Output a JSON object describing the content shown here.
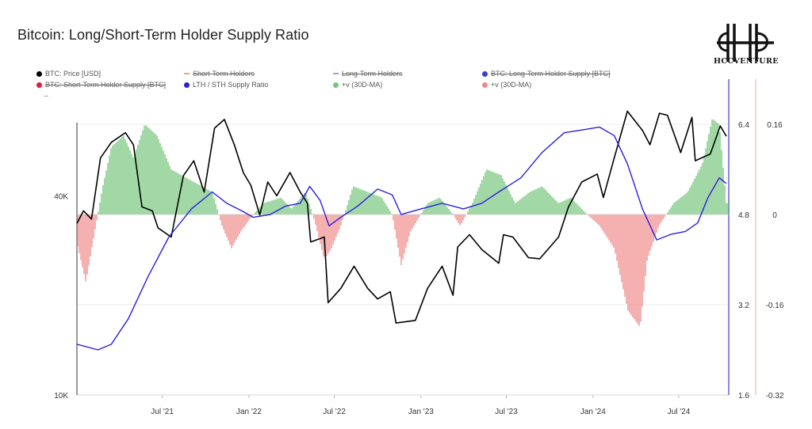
{
  "title": "Bitcoin: Long/Short-Term Holder Supply Ratio",
  "logo": {
    "name": "HCCVENTURE"
  },
  "legend_more": "--",
  "legend": [
    {
      "label": "BTC: Price [USD]",
      "color": "#000000",
      "shape": "dot",
      "enabled": true
    },
    {
      "label": "Short-Term Holders",
      "color": "#f4a582",
      "shape": "dash",
      "enabled": false
    },
    {
      "label": "Long-Term Holders",
      "color": "#9e9ee8",
      "shape": "dash",
      "enabled": false
    },
    {
      "label": "BTC: Long-Term Holder Supply [BTC]",
      "color": "#3b3bd6",
      "shape": "dot",
      "enabled": false
    },
    {
      "label": "BTC: Short-Term Holder Supply [BTC]",
      "color": "#e8173f",
      "shape": "dot",
      "enabled": false
    },
    {
      "label": "LTH / STH Supply Ratio",
      "color": "#2a1fe0",
      "shape": "dot",
      "enabled": true
    },
    {
      "label": "+v (30D-MA)",
      "color": "#76c67c",
      "shape": "dot",
      "enabled": true
    },
    {
      "label": "+v (30D-MA)",
      "color": "#f08a8a",
      "shape": "dot",
      "enabled": true
    }
  ],
  "chart_data": {
    "type": "line",
    "x_ticks": [
      "Jul '21",
      "Jan '22",
      "Jul '22",
      "Jan '23",
      "Jul '23",
      "Jan '24",
      "Jul '24"
    ],
    "x_range": [
      "2021-01",
      "2024-10"
    ],
    "price_axis": {
      "scale": "log",
      "ticks": [
        "10K",
        "40K"
      ],
      "range": [
        10000,
        90000
      ]
    },
    "ratio_axis": {
      "ticks": [
        "1.6",
        "3.2",
        "4.8",
        "6.4"
      ],
      "range": [
        1.6,
        7.2
      ]
    },
    "momentum_axis": {
      "ticks": [
        "-0.32",
        "-0.16",
        "0",
        "0.16"
      ],
      "range": [
        -0.32,
        0.24
      ]
    },
    "series": [
      {
        "name": "BTC: Price [USD]",
        "color": "#000000",
        "axis": "price",
        "points": [
          [
            "2021-01-01",
            33000
          ],
          [
            "2021-01-15",
            36000
          ],
          [
            "2021-02-01",
            34000
          ],
          [
            "2021-02-20",
            52000
          ],
          [
            "2021-03-15",
            58000
          ],
          [
            "2021-04-14",
            62000
          ],
          [
            "2021-05-01",
            57000
          ],
          [
            "2021-05-19",
            37000
          ],
          [
            "2021-06-10",
            36000
          ],
          [
            "2021-06-22",
            32000
          ],
          [
            "2021-07-20",
            30000
          ],
          [
            "2021-08-15",
            46000
          ],
          [
            "2021-09-06",
            51000
          ],
          [
            "2021-09-28",
            41000
          ],
          [
            "2021-10-20",
            64000
          ],
          [
            "2021-11-10",
            68000
          ],
          [
            "2021-12-01",
            57000
          ],
          [
            "2021-12-20",
            47000
          ],
          [
            "2022-01-05",
            43000
          ],
          [
            "2022-01-24",
            35000
          ],
          [
            "2022-02-10",
            44000
          ],
          [
            "2022-03-01",
            40000
          ],
          [
            "2022-03-29",
            47000
          ],
          [
            "2022-04-20",
            41000
          ],
          [
            "2022-05-05",
            38000
          ],
          [
            "2022-05-12",
            29000
          ],
          [
            "2022-06-10",
            30000
          ],
          [
            "2022-06-18",
            19000
          ],
          [
            "2022-07-15",
            21000
          ],
          [
            "2022-08-12",
            24500
          ],
          [
            "2022-09-10",
            21000
          ],
          [
            "2022-10-01",
            19500
          ],
          [
            "2022-10-28",
            20500
          ],
          [
            "2022-11-09",
            16500
          ],
          [
            "2022-12-20",
            16800
          ],
          [
            "2023-01-15",
            21000
          ],
          [
            "2023-02-15",
            24500
          ],
          [
            "2023-03-10",
            20000
          ],
          [
            "2023-03-20",
            28000
          ],
          [
            "2023-04-14",
            30500
          ],
          [
            "2023-05-10",
            27500
          ],
          [
            "2023-06-15",
            25000
          ],
          [
            "2023-06-25",
            30500
          ],
          [
            "2023-07-15",
            30000
          ],
          [
            "2023-08-17",
            26000
          ],
          [
            "2023-09-10",
            25800
          ],
          [
            "2023-10-20",
            30000
          ],
          [
            "2023-11-10",
            37000
          ],
          [
            "2023-12-08",
            44000
          ],
          [
            "2024-01-10",
            46500
          ],
          [
            "2024-01-23",
            39500
          ],
          [
            "2024-02-15",
            52000
          ],
          [
            "2024-03-14",
            72000
          ],
          [
            "2024-04-15",
            63000
          ],
          [
            "2024-05-01",
            57000
          ],
          [
            "2024-05-21",
            71000
          ],
          [
            "2024-06-07",
            70000
          ],
          [
            "2024-07-05",
            54000
          ],
          [
            "2024-07-29",
            69000
          ],
          [
            "2024-08-05",
            51000
          ],
          [
            "2024-09-06",
            53500
          ],
          [
            "2024-09-27",
            65000
          ],
          [
            "2024-10-10",
            60500
          ]
        ]
      },
      {
        "name": "LTH / STH Supply Ratio",
        "color": "#2a1fe0",
        "axis": "ratio",
        "points": [
          [
            "2021-01-01",
            2.5
          ],
          [
            "2021-02-15",
            2.4
          ],
          [
            "2021-03-15",
            2.5
          ],
          [
            "2021-04-20",
            2.95
          ],
          [
            "2021-06-01",
            3.7
          ],
          [
            "2021-07-15",
            4.4
          ],
          [
            "2021-09-01",
            4.9
          ],
          [
            "2021-10-15",
            5.2
          ],
          [
            "2021-11-15",
            5.0
          ],
          [
            "2021-12-20",
            4.85
          ],
          [
            "2022-01-10",
            4.75
          ],
          [
            "2022-02-15",
            4.8
          ],
          [
            "2022-03-20",
            4.95
          ],
          [
            "2022-04-20",
            5.0
          ],
          [
            "2022-05-10",
            5.3
          ],
          [
            "2022-06-01",
            5.05
          ],
          [
            "2022-06-20",
            4.6
          ],
          [
            "2022-07-15",
            4.75
          ],
          [
            "2022-08-20",
            4.95
          ],
          [
            "2022-10-01",
            5.25
          ],
          [
            "2022-11-01",
            5.15
          ],
          [
            "2022-11-20",
            4.8
          ],
          [
            "2023-01-01",
            4.9
          ],
          [
            "2023-02-15",
            5.0
          ],
          [
            "2023-04-01",
            4.9
          ],
          [
            "2023-05-10",
            5.0
          ],
          [
            "2023-06-15",
            5.2
          ],
          [
            "2023-08-01",
            5.45
          ],
          [
            "2023-09-15",
            5.9
          ],
          [
            "2023-11-01",
            6.25
          ],
          [
            "2023-12-10",
            6.3
          ],
          [
            "2024-01-15",
            6.35
          ],
          [
            "2024-02-15",
            6.2
          ],
          [
            "2024-03-14",
            5.7
          ],
          [
            "2024-04-15",
            4.9
          ],
          [
            "2024-05-15",
            4.35
          ],
          [
            "2024-06-15",
            4.45
          ],
          [
            "2024-07-15",
            4.5
          ],
          [
            "2024-08-10",
            4.65
          ],
          [
            "2024-09-01",
            5.1
          ],
          [
            "2024-09-25",
            5.45
          ],
          [
            "2024-10-10",
            5.35
          ]
        ]
      },
      {
        "name": "+v (30D-MA)",
        "color": "#76c67c",
        "negative_color": "#f08a8a",
        "axis": "momentum",
        "style": "histogram",
        "points": [
          [
            "2021-01-01",
            -0.05
          ],
          [
            "2021-01-20",
            -0.12
          ],
          [
            "2021-02-10",
            -0.02
          ],
          [
            "2021-02-25",
            0.05
          ],
          [
            "2021-03-15",
            0.12
          ],
          [
            "2021-04-10",
            0.14
          ],
          [
            "2021-05-01",
            0.1
          ],
          [
            "2021-05-25",
            0.16
          ],
          [
            "2021-06-20",
            0.14
          ],
          [
            "2021-07-20",
            0.08
          ],
          [
            "2021-09-01",
            0.06
          ],
          [
            "2021-10-15",
            0.04
          ],
          [
            "2021-11-05",
            -0.02
          ],
          [
            "2021-11-25",
            -0.06
          ],
          [
            "2021-12-15",
            -0.03
          ],
          [
            "2022-01-10",
            0.0
          ],
          [
            "2022-02-01",
            0.02
          ],
          [
            "2022-03-10",
            0.03
          ],
          [
            "2022-04-01",
            0.01
          ],
          [
            "2022-05-01",
            0.04
          ],
          [
            "2022-05-20",
            -0.01
          ],
          [
            "2022-06-10",
            -0.08
          ],
          [
            "2022-06-25",
            -0.06
          ],
          [
            "2022-07-15",
            -0.02
          ],
          [
            "2022-08-10",
            0.05
          ],
          [
            "2022-09-10",
            0.04
          ],
          [
            "2022-10-10",
            0.03
          ],
          [
            "2022-11-01",
            0.0
          ],
          [
            "2022-11-20",
            -0.09
          ],
          [
            "2022-12-10",
            -0.03
          ],
          [
            "2023-01-15",
            0.02
          ],
          [
            "2023-02-10",
            0.03
          ],
          [
            "2023-03-10",
            0.0
          ],
          [
            "2023-03-25",
            -0.02
          ],
          [
            "2023-04-20",
            0.02
          ],
          [
            "2023-05-20",
            0.08
          ],
          [
            "2023-06-20",
            0.07
          ],
          [
            "2023-07-20",
            0.02
          ],
          [
            "2023-08-20",
            0.04
          ],
          [
            "2023-09-15",
            0.05
          ],
          [
            "2023-10-20",
            0.02
          ],
          [
            "2023-11-15",
            0.03
          ],
          [
            "2023-12-20",
            0.0
          ],
          [
            "2024-01-15",
            -0.02
          ],
          [
            "2024-02-15",
            -0.06
          ],
          [
            "2024-03-15",
            -0.17
          ],
          [
            "2024-04-10",
            -0.2
          ],
          [
            "2024-04-25",
            -0.08
          ],
          [
            "2024-05-20",
            -0.02
          ],
          [
            "2024-06-20",
            0.02
          ],
          [
            "2024-07-20",
            0.04
          ],
          [
            "2024-08-20",
            0.09
          ],
          [
            "2024-09-10",
            0.17
          ],
          [
            "2024-09-25",
            0.16
          ],
          [
            "2024-10-10",
            0.02
          ]
        ]
      }
    ]
  }
}
